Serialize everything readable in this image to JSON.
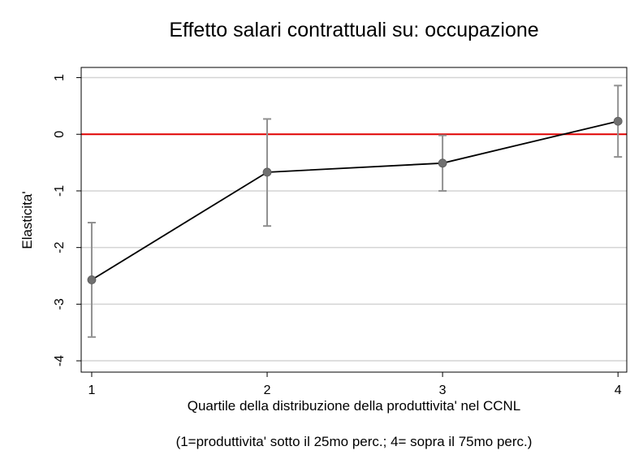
{
  "chart_data": {
    "type": "line",
    "title": "Effetto salari contrattuali su: occupazione",
    "xlabel": "Quartile della distribuzione della produttivita' nel CCNL",
    "ylabel": "Elasticita'",
    "note": "(1=produttivita' sotto il 25mo perc.;  4= sopra il 75mo perc.)",
    "x": [
      1,
      2,
      3,
      4
    ],
    "x_ticks": [
      "1",
      "2",
      "3",
      "4"
    ],
    "y_ticks": [
      "1",
      "0",
      "-1",
      "-2",
      "-3",
      "-4"
    ],
    "y_tick_values": [
      1,
      0,
      -1,
      -2,
      -3,
      -4
    ],
    "xlim": [
      0.94,
      4.05
    ],
    "ylim": [
      -4.2,
      1.18
    ],
    "series": [
      {
        "values": [
          -2.57,
          -0.67,
          -0.51,
          0.23
        ],
        "ci_low": [
          -3.58,
          -1.62,
          -1.0,
          -0.4
        ],
        "ci_high": [
          -1.56,
          0.27,
          -0.02,
          0.86
        ]
      }
    ],
    "reference_line": {
      "y": 0,
      "color": "#e00000"
    },
    "grid": true,
    "colors": {
      "line": "#000000",
      "marker": "#707070",
      "error_bar": "#909090",
      "grid": "#d4d4d4"
    }
  }
}
